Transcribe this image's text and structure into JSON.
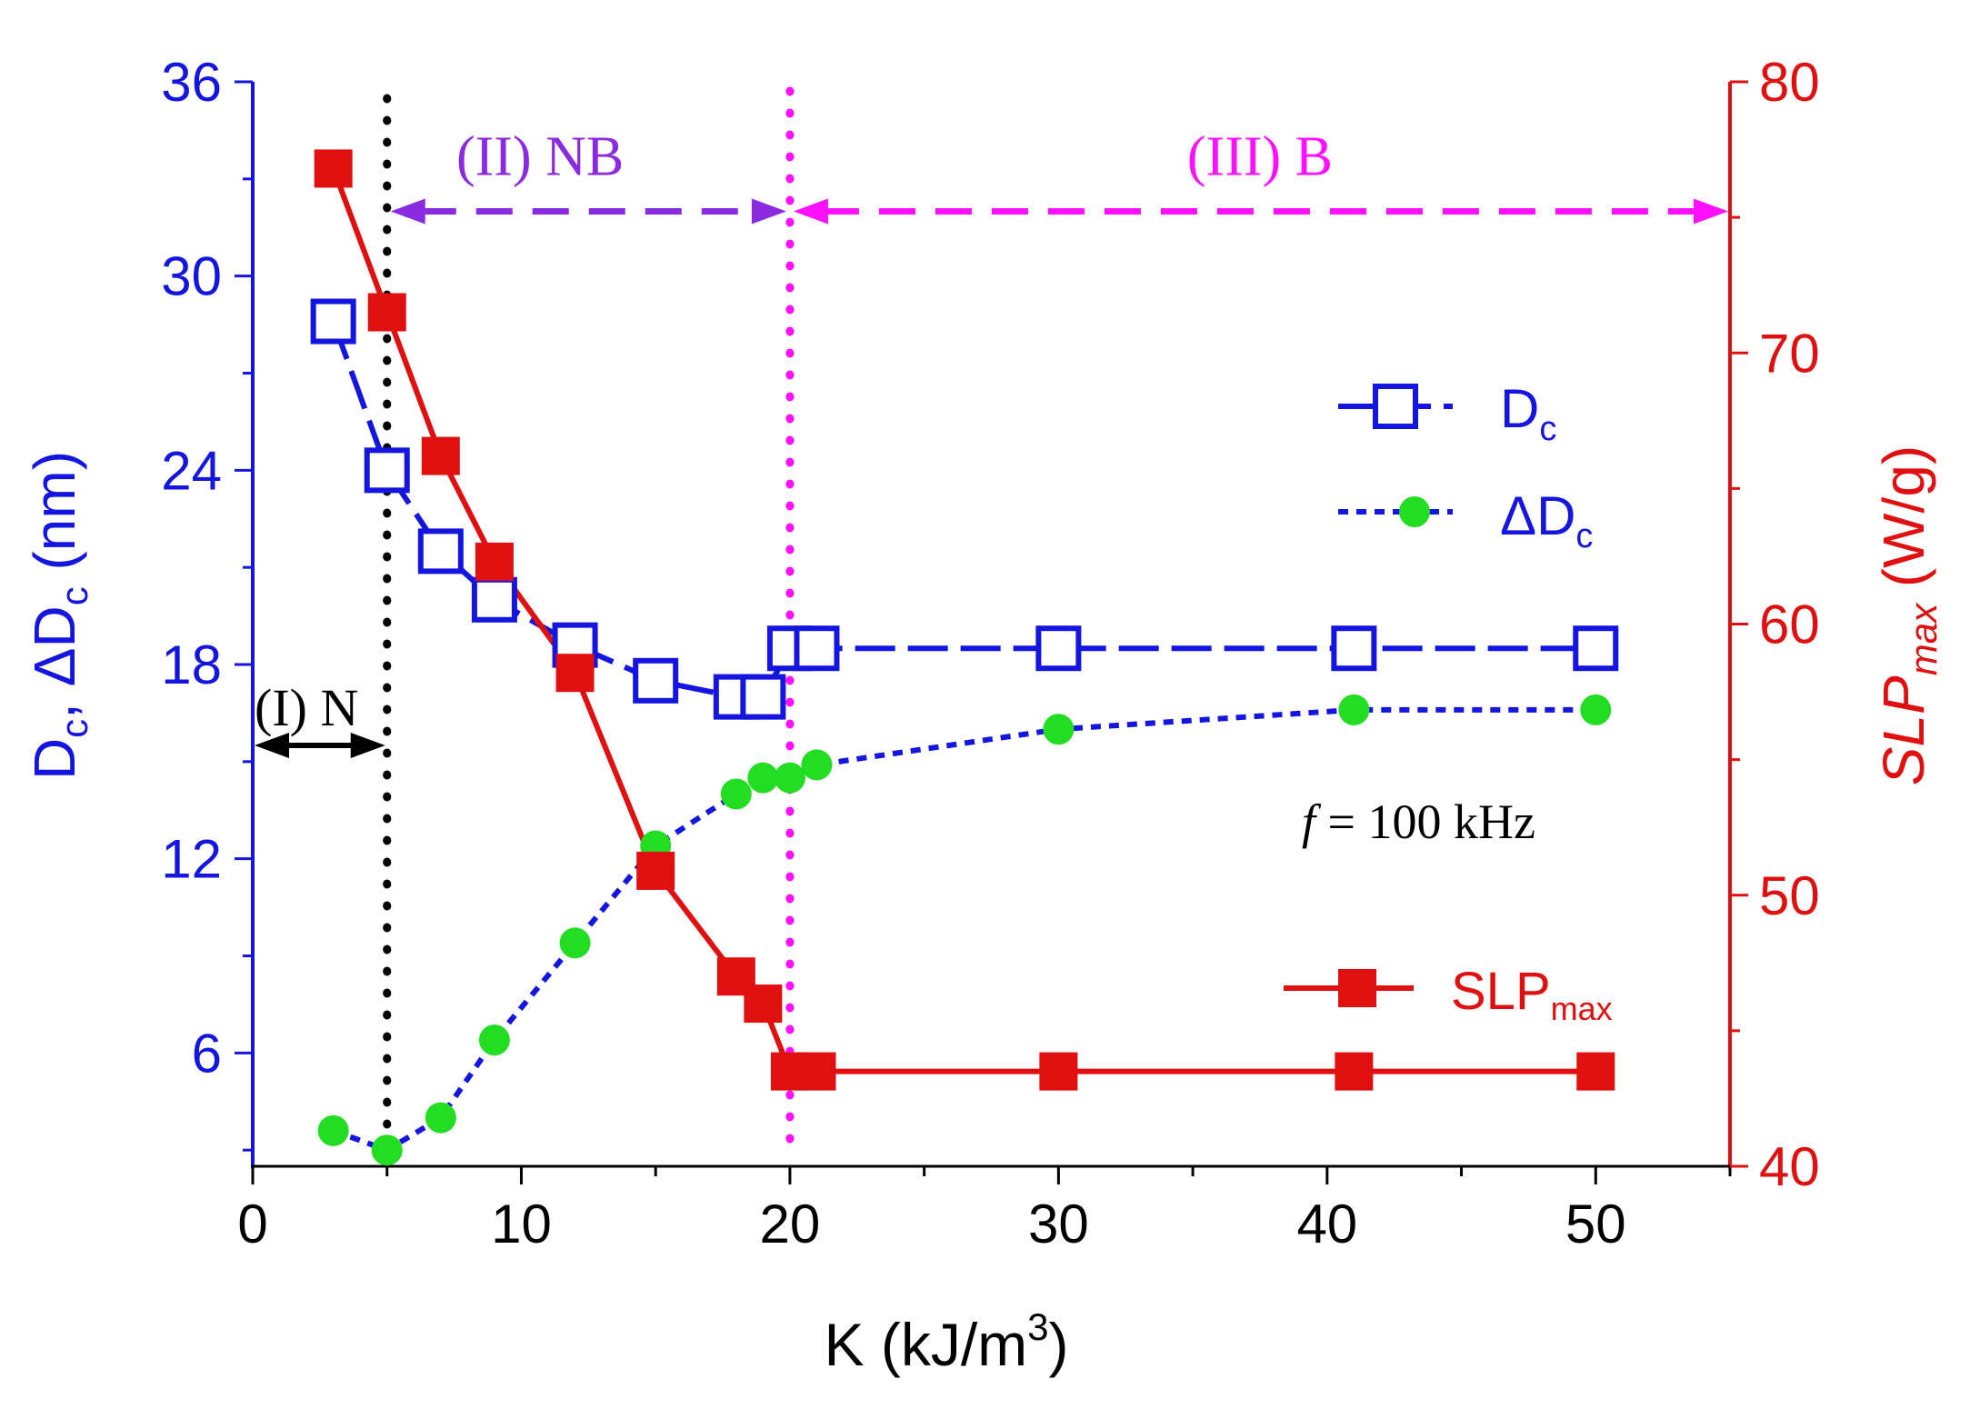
{
  "chart_data": {
    "type": "line",
    "xlabel": {
      "main": "K (kJ/m",
      "sup": "3",
      "close": ")"
    },
    "ylabel_left": {
      "d": "D",
      "sub1": "c",
      "comma": ", ",
      "delta": "ΔD",
      "sub2": "c",
      "unit": " (nm)"
    },
    "ylabel_right": {
      "main": "SLP",
      "sub": "max",
      "unit": " (W/g)"
    },
    "xlim": [
      0,
      55
    ],
    "ylim_left": [
      2.5,
      36
    ],
    "ylim_right": [
      40,
      80
    ],
    "x_ticks": [
      0,
      10,
      20,
      30,
      40,
      50
    ],
    "x_tick_labels": [
      "0",
      "10",
      "20",
      "30",
      "40",
      "50"
    ],
    "y_left_ticks": [
      6,
      12,
      18,
      24,
      30,
      36
    ],
    "y_left_tick_labels": [
      "6",
      "12",
      "18",
      "24",
      "30",
      "36"
    ],
    "y_right_ticks": [
      40,
      50,
      60,
      70,
      80
    ],
    "y_right_tick_labels": [
      "40",
      "50",
      "60",
      "70",
      "80"
    ],
    "colors": {
      "dc": "#1515e0",
      "ddc": "#22dd22",
      "slp": "#e01010",
      "nb": "#8a2be2",
      "b": "#ff10ff",
      "n": "#000000"
    },
    "series": [
      {
        "name": "Dc",
        "axis": "left",
        "style": "dash-open-square",
        "x": [
          3,
          5,
          7,
          9,
          12,
          15,
          18,
          19,
          20,
          21,
          30,
          41,
          50
        ],
        "y": [
          28.6,
          24.0,
          21.5,
          20.0,
          18.6,
          17.5,
          17.0,
          17.0,
          18.5,
          18.5,
          18.5,
          18.5,
          18.5
        ]
      },
      {
        "name": "ΔDc",
        "axis": "left",
        "style": "dotted-circle",
        "x": [
          3,
          5,
          7,
          9,
          12,
          15,
          18,
          19,
          20,
          21,
          30,
          41,
          50
        ],
        "y": [
          3.6,
          3.0,
          4.0,
          6.4,
          9.4,
          12.4,
          14.0,
          14.5,
          14.5,
          14.9,
          16.0,
          16.6,
          16.6
        ]
      },
      {
        "name": "SLPmax",
        "axis": "right",
        "style": "solid-square",
        "x": [
          3,
          5,
          7,
          9,
          12,
          15,
          18,
          19,
          20,
          21,
          30,
          41,
          50
        ],
        "y": [
          76.8,
          71.5,
          66.2,
          62.3,
          58.2,
          50.9,
          47.0,
          46.0,
          43.5,
          43.5,
          43.5,
          43.5,
          43.5
        ]
      }
    ],
    "legend": [
      {
        "key": "Dc",
        "label": "D",
        "sub": "c"
      },
      {
        "key": "ΔDc",
        "label": "ΔD",
        "sub": "c"
      },
      {
        "key": "SLPmax",
        "label": "SLP",
        "sub": "max"
      }
    ],
    "regions": {
      "n": {
        "label": "(I) N",
        "x_from": 0,
        "x_to": 5,
        "y": 15.5
      },
      "nb": {
        "label": "(II) NB",
        "x_from": 5,
        "x_to": 20,
        "y": 32
      },
      "b": {
        "label": "(III) B",
        "x_from": 20,
        "x_to": 55,
        "y": 32
      }
    },
    "vlines": [
      {
        "name": "n-nb-boundary",
        "x": 5
      },
      {
        "name": "nb-b-boundary",
        "x": 20
      }
    ],
    "annotation": {
      "italic": "f",
      "text": " = 100 kHz"
    }
  }
}
